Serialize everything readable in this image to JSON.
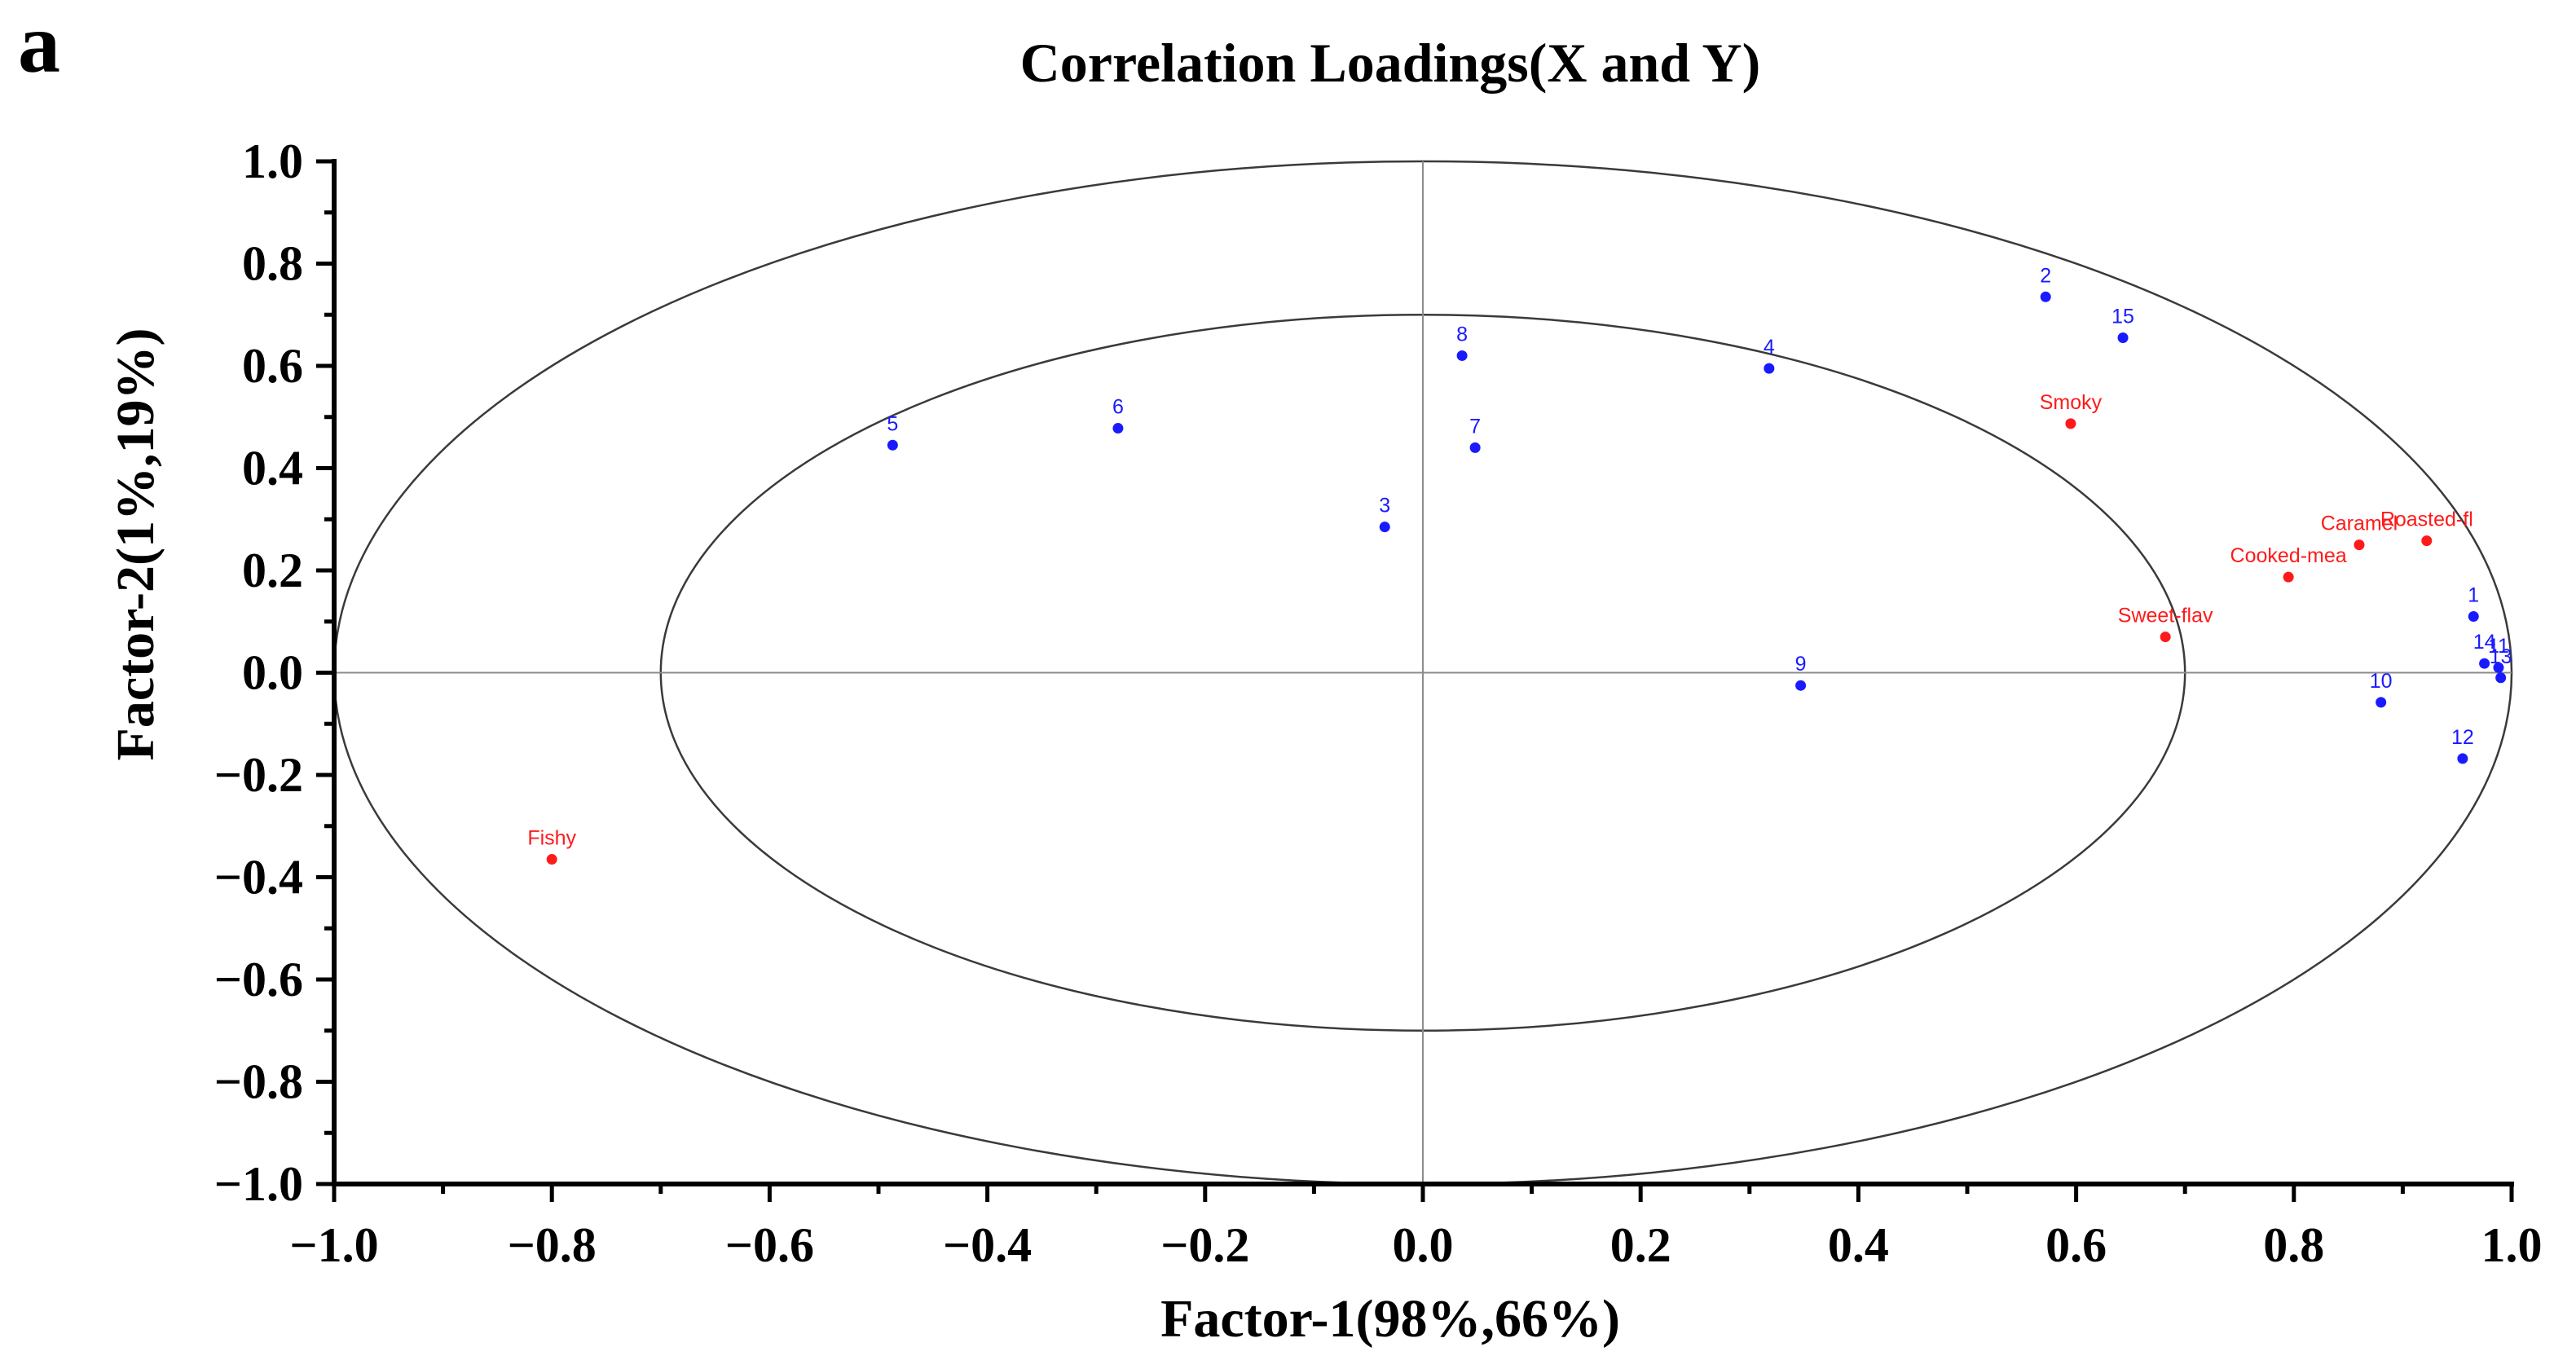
{
  "chart_data": {
    "type": "scatter",
    "panel_label": "a",
    "title": "Correlation Loadings(X and Y)",
    "xlabel": "Factor-1(98%,66%)",
    "ylabel": "Factor-2(1%,19%)",
    "xlim": [
      -1.0,
      1.0
    ],
    "ylim": [
      -1.0,
      1.0
    ],
    "x_ticks": [
      "−1.0",
      "−0.8",
      "−0.6",
      "−0.4",
      "−0.2",
      "0.0",
      "0.2",
      "0.4",
      "0.6",
      "0.8",
      "1.0"
    ],
    "y_ticks": [
      "1.0",
      "0.8",
      "0.6",
      "0.4",
      "0.2",
      "0.0",
      "−0.2",
      "−0.4",
      "−0.6",
      "−0.8",
      "−1.0"
    ],
    "x_tick_values": [
      -1.0,
      -0.8,
      -0.6,
      -0.4,
      -0.2,
      0.0,
      0.2,
      0.4,
      0.6,
      0.8,
      1.0
    ],
    "y_tick_values": [
      1.0,
      0.8,
      0.6,
      0.4,
      0.2,
      0.0,
      -0.2,
      -0.4,
      -0.6,
      -0.8,
      -1.0
    ],
    "ellipses": [
      {
        "name": "outer",
        "radius": 1.0
      },
      {
        "name": "inner",
        "radius": 0.7
      }
    ],
    "series": [
      {
        "name": "X",
        "color": "#1a1aff",
        "points": [
          {
            "label": "1",
            "x": 0.965,
            "y": 0.11
          },
          {
            "label": "2",
            "x": 0.572,
            "y": 0.735
          },
          {
            "label": "3",
            "x": -0.035,
            "y": 0.285
          },
          {
            "label": "4",
            "x": 0.318,
            "y": 0.595
          },
          {
            "label": "5",
            "x": -0.487,
            "y": 0.445
          },
          {
            "label": "6",
            "x": -0.28,
            "y": 0.478
          },
          {
            "label": "7",
            "x": 0.048,
            "y": 0.44
          },
          {
            "label": "8",
            "x": 0.036,
            "y": 0.62
          },
          {
            "label": "9",
            "x": 0.347,
            "y": -0.025
          },
          {
            "label": "10",
            "x": 0.88,
            "y": -0.058
          },
          {
            "label": "11",
            "x": 0.988,
            "y": 0.01
          },
          {
            "label": "12",
            "x": 0.955,
            "y": -0.168
          },
          {
            "label": "13",
            "x": 0.99,
            "y": -0.01
          },
          {
            "label": "14",
            "x": 0.975,
            "y": 0.018
          },
          {
            "label": "15",
            "x": 0.643,
            "y": 0.655
          }
        ]
      },
      {
        "name": "Y",
        "color": "#ff1a1a",
        "points": [
          {
            "label": "Smoky",
            "x": 0.595,
            "y": 0.487
          },
          {
            "label": "Caramel",
            "x": 0.86,
            "y": 0.25
          },
          {
            "label": "Roasted-fl",
            "x": 0.922,
            "y": 0.258
          },
          {
            "label": "Cooked-mea",
            "x": 0.795,
            "y": 0.187
          },
          {
            "label": "Sweet-flav",
            "x": 0.682,
            "y": 0.07
          },
          {
            "label": "Fishy",
            "x": -0.8,
            "y": -0.365
          }
        ]
      }
    ]
  }
}
